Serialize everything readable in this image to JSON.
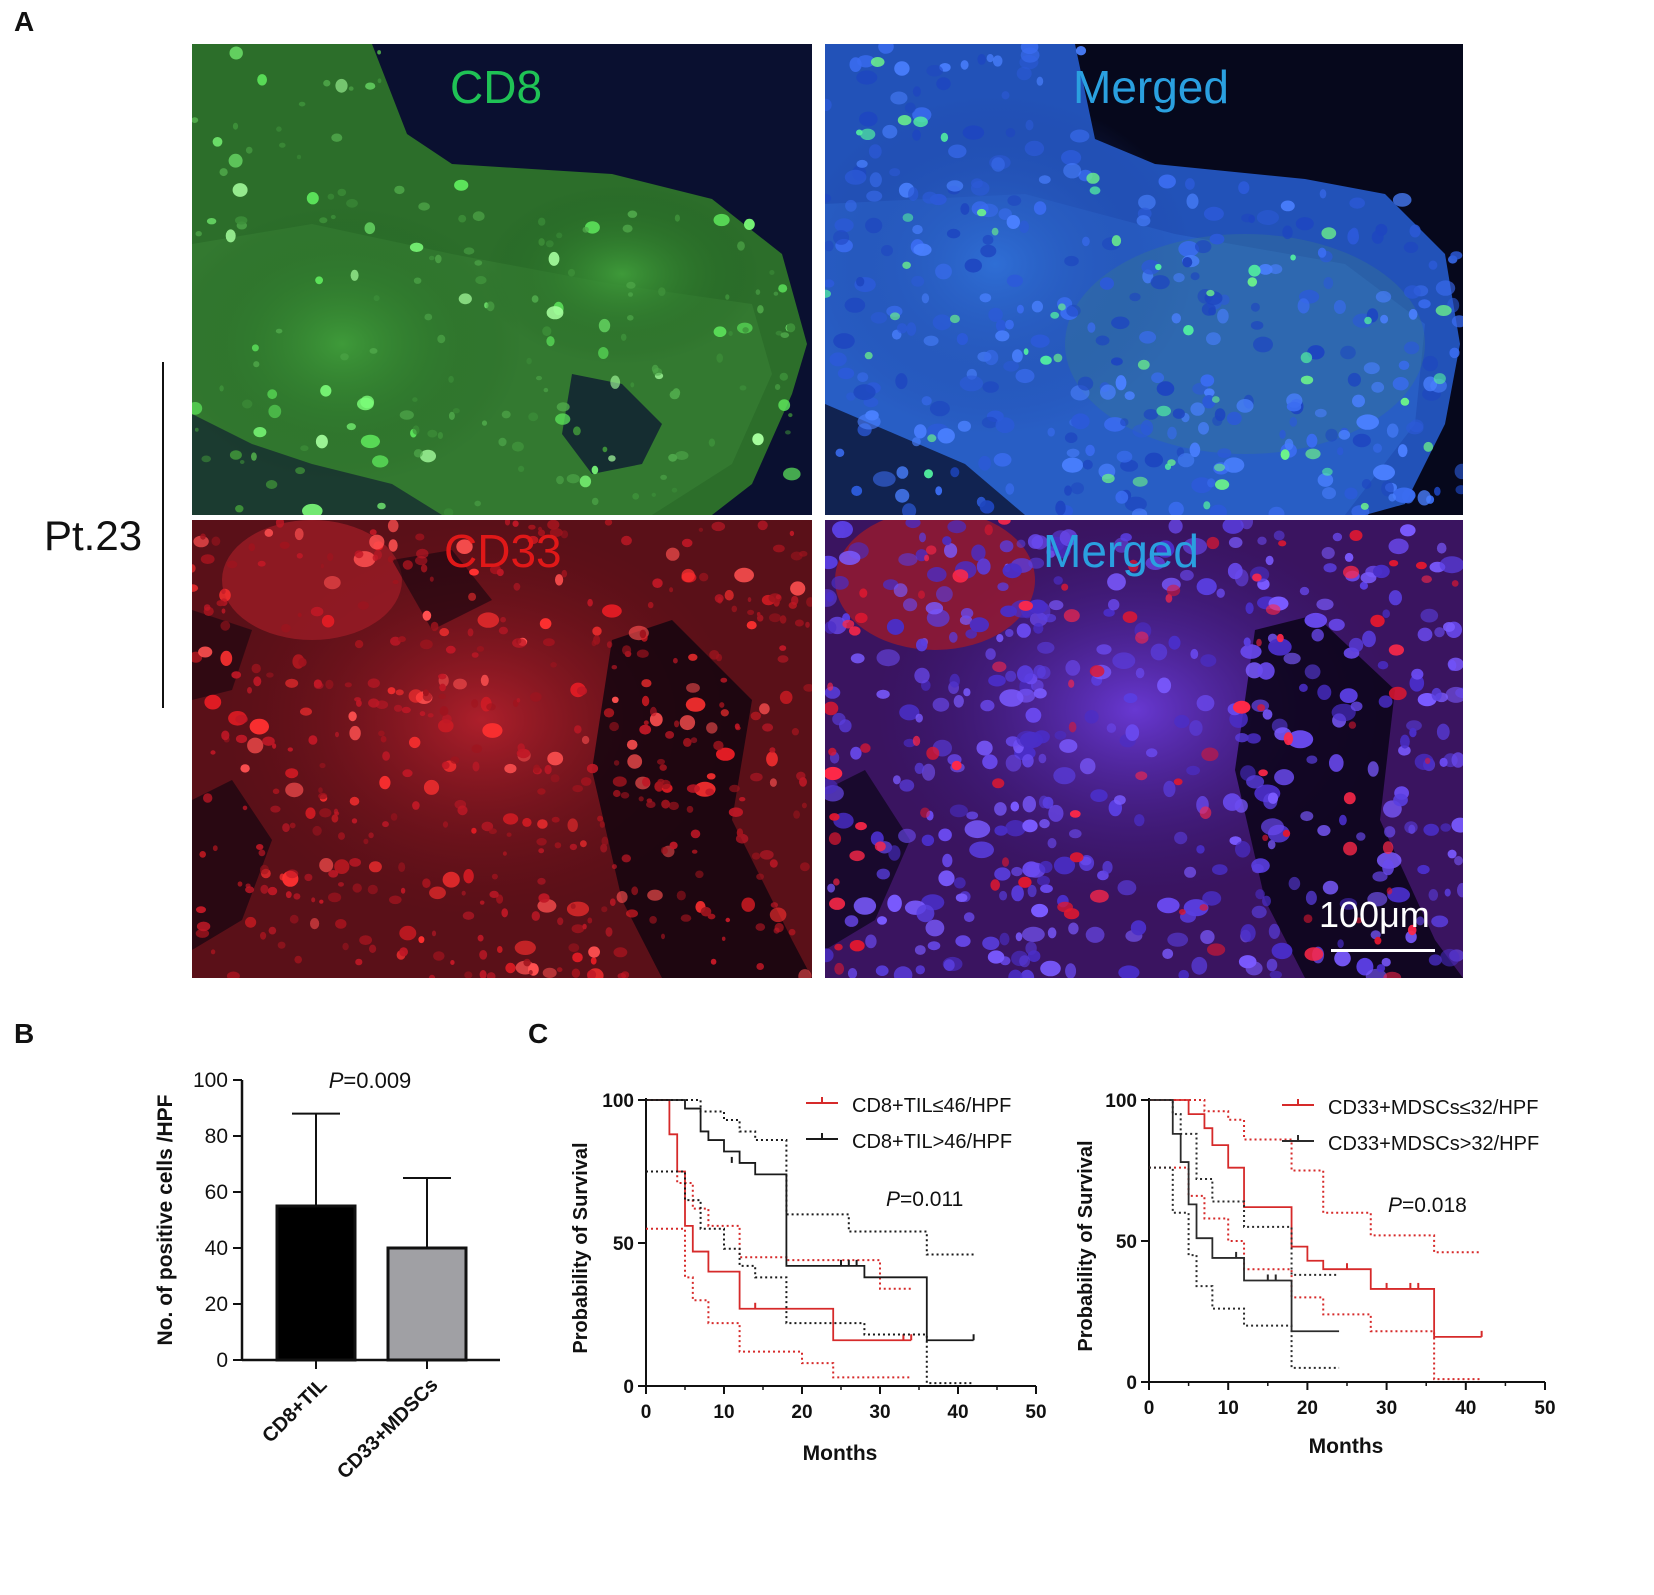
{
  "figure": {
    "panel_a": {
      "letter": "A",
      "patient_label": "Pt.23",
      "images": [
        {
          "label": "CD8",
          "label_color": "#1fc255"
        },
        {
          "label": "Merged",
          "label_color": "#2aa0e0"
        },
        {
          "label": "CD33",
          "label_color": "#e01818"
        },
        {
          "label": "Merged",
          "label_color": "#2aa0e0"
        }
      ],
      "scale_bar": "100μm"
    },
    "panel_b": {
      "letter": "B",
      "p_prefix": "P",
      "p_value": "=0.009"
    },
    "panel_c": {
      "letter": "C",
      "left": {
        "p_prefix": "P",
        "p_value": "=0.011",
        "legend": [
          "CD8+TIL≤46/HPF",
          "CD8+TIL>46/HPF"
        ]
      },
      "right": {
        "p_prefix": "P",
        "p_value": "=0.018",
        "legend": [
          "CD33+MDSCs≤32/HPF",
          "CD33+MDSCs>32/HPF"
        ]
      }
    }
  },
  "chart_data": [
    {
      "type": "bar",
      "ylabel": "No. of positive cells /HPF",
      "categories": [
        "CD8+TIL",
        "CD33+MDSCs"
      ],
      "values": [
        55,
        40
      ],
      "error_upper": [
        88,
        65
      ],
      "ylim": [
        0,
        100
      ],
      "yticks": [
        0,
        20,
        40,
        60,
        80,
        100
      ],
      "bar_colors": [
        "#000000",
        "#a0a0a4"
      ]
    },
    {
      "type": "line",
      "xlabel": "Months",
      "ylabel": "Probability of Survival",
      "xlim": [
        0,
        50
      ],
      "ylim": [
        0,
        100
      ],
      "xticks": [
        0,
        10,
        20,
        30,
        40,
        50
      ],
      "yticks": [
        0,
        50,
        100
      ],
      "series": [
        {
          "name": "CD8+TIL≤46/HPF",
          "color": "#d62a2a",
          "x": [
            0,
            3,
            4,
            5,
            6,
            8,
            12,
            24,
            34
          ],
          "y": [
            100,
            88,
            75,
            56,
            47,
            40,
            27,
            16,
            16
          ],
          "censor_x": [
            14,
            33,
            34
          ],
          "censor_y": [
            27,
            16,
            16
          ],
          "upper_x": [
            0,
            3,
            4,
            6,
            8,
            12,
            18,
            30,
            34
          ],
          "upper_y": [
            75,
            75,
            71,
            62,
            56,
            45,
            44,
            34,
            34
          ],
          "lower_x": [
            0,
            5,
            6,
            8,
            12,
            20,
            24,
            34
          ],
          "lower_y": [
            55,
            38,
            30,
            22,
            12,
            8,
            3,
            3
          ]
        },
        {
          "name": "CD8+TIL>46/HPF",
          "color": "#1a1a1a",
          "x": [
            0,
            5,
            7,
            8,
            10,
            12,
            14,
            18,
            28,
            36,
            42
          ],
          "y": [
            100,
            97,
            89,
            86,
            82,
            78,
            74,
            42,
            38,
            16,
            16
          ],
          "censor_x": [
            11,
            25,
            26,
            27,
            42
          ],
          "censor_y": [
            78,
            42,
            42,
            42,
            16
          ],
          "upper_x": [
            0,
            5,
            7,
            10,
            12,
            14,
            18,
            26,
            36,
            42
          ],
          "upper_y": [
            100,
            100,
            96,
            93,
            89,
            86,
            60,
            54,
            46,
            46
          ],
          "lower_x": [
            0,
            5,
            7,
            10,
            12,
            14,
            18,
            28,
            36,
            42
          ],
          "lower_y": [
            75,
            65,
            55,
            48,
            42,
            38,
            22,
            18,
            1,
            1
          ]
        }
      ]
    },
    {
      "type": "line",
      "xlabel": "Months",
      "ylabel": "Probability of Survival",
      "xlim": [
        0,
        50
      ],
      "ylim": [
        0,
        100
      ],
      "xticks": [
        0,
        10,
        20,
        30,
        40,
        50
      ],
      "yticks": [
        0,
        50,
        100
      ],
      "series": [
        {
          "name": "CD33+MDSCs≤32/HPF",
          "color": "#d62a2a",
          "x": [
            0,
            5,
            7,
            8,
            10,
            12,
            18,
            20,
            22,
            28,
            36,
            42
          ],
          "y": [
            100,
            95,
            90,
            84,
            76,
            62,
            48,
            43,
            40,
            33,
            16,
            16
          ],
          "censor_x": [
            25,
            30,
            33,
            34,
            42
          ],
          "censor_y": [
            40,
            33,
            33,
            33,
            16
          ],
          "upper_x": [
            0,
            5,
            7,
            10,
            12,
            18,
            22,
            28,
            36,
            42
          ],
          "upper_y": [
            100,
            100,
            96,
            93,
            86,
            75,
            60,
            52,
            46,
            46
          ],
          "lower_x": [
            0,
            5,
            7,
            10,
            12,
            18,
            22,
            28,
            36,
            42
          ],
          "lower_y": [
            76,
            66,
            58,
            50,
            40,
            30,
            24,
            18,
            1,
            1
          ]
        },
        {
          "name": "CD33+MDSCs>32/HPF",
          "color": "#2b2b2b",
          "x": [
            0,
            3,
            4,
            5,
            6,
            8,
            12,
            18,
            24
          ],
          "y": [
            100,
            88,
            78,
            63,
            51,
            44,
            36,
            18,
            18
          ],
          "censor_x": [
            11,
            15,
            16
          ],
          "censor_y": [
            44,
            36,
            36
          ],
          "upper_x": [
            0,
            3,
            4,
            6,
            8,
            12,
            18,
            24
          ],
          "upper_y": [
            100,
            95,
            88,
            72,
            64,
            55,
            38,
            38
          ],
          "lower_x": [
            0,
            3,
            5,
            6,
            8,
            12,
            18,
            24
          ],
          "lower_y": [
            76,
            60,
            45,
            34,
            26,
            20,
            5,
            5
          ]
        }
      ]
    }
  ]
}
